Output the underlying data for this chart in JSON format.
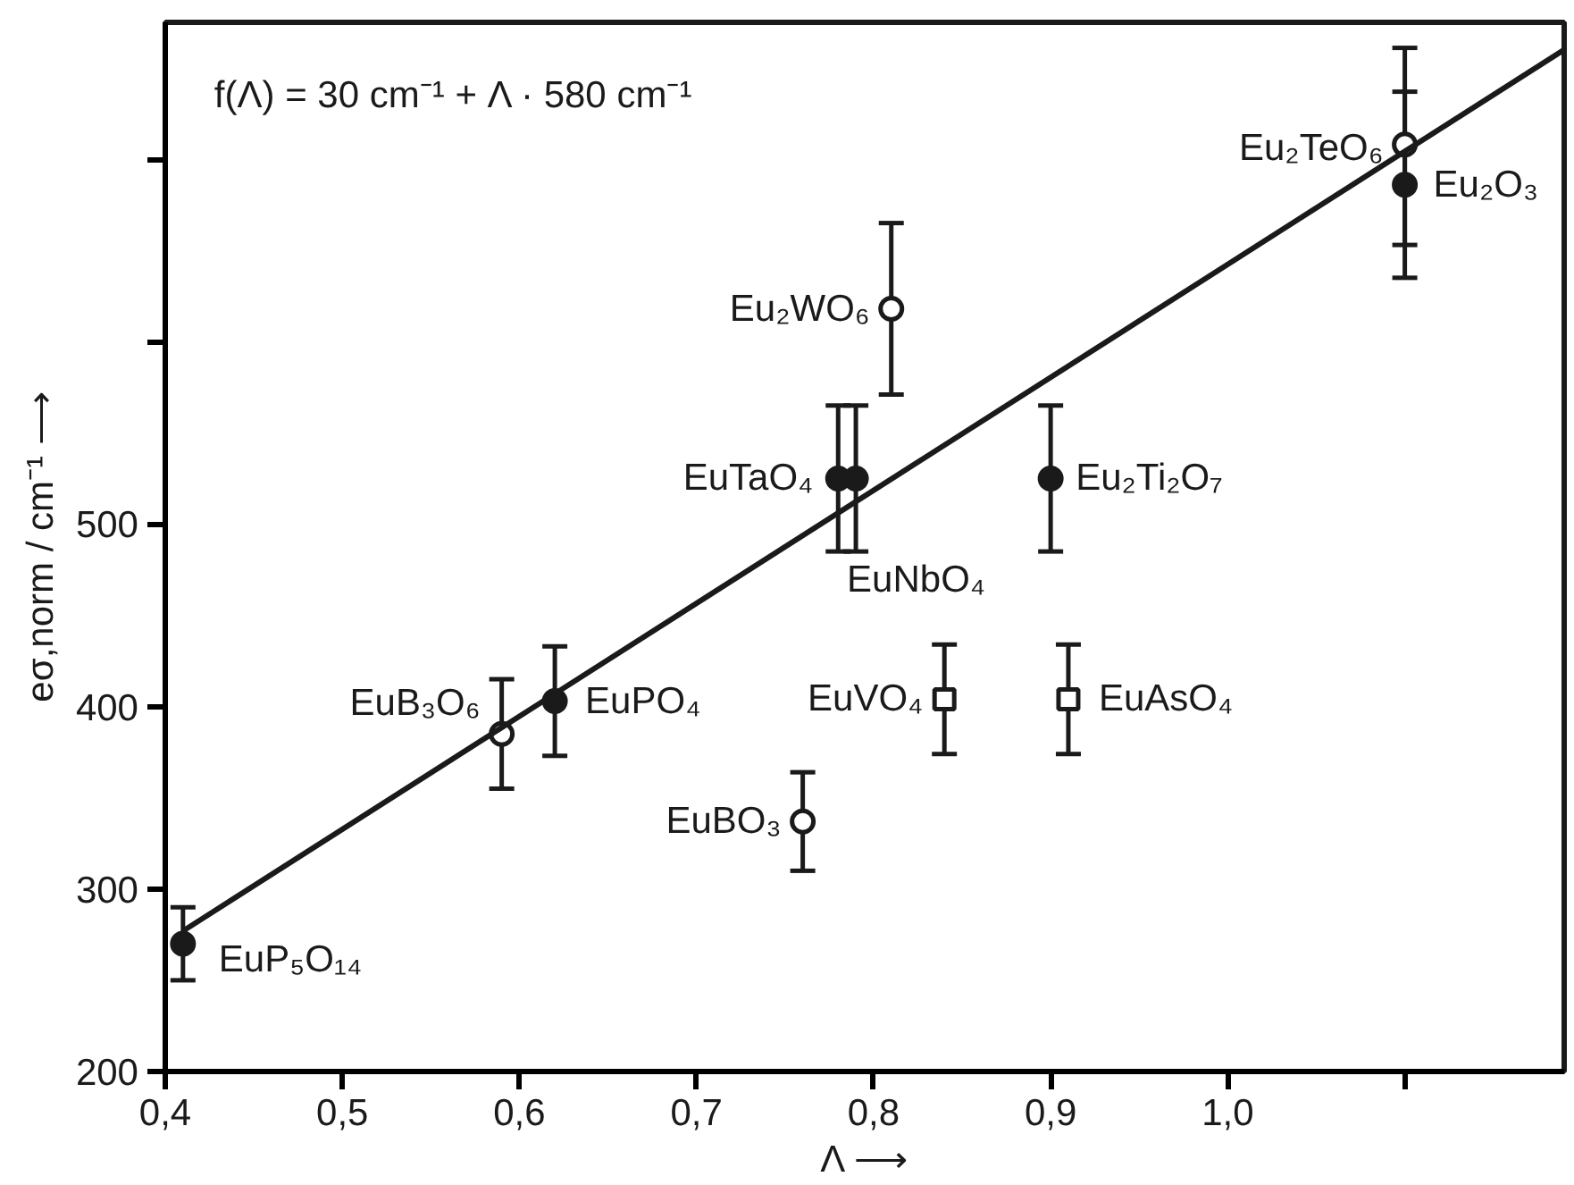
{
  "chart_data": {
    "type": "scatter",
    "xlabel": "Λ ⟶",
    "ylabel": "eσ,norm / cm⁻¹ ⟶",
    "xlim": [
      0.4,
      1.19
    ],
    "ylim": [
      200,
      775
    ],
    "xticks": [
      {
        "value": 0.4,
        "label": "0,4"
      },
      {
        "value": 0.5,
        "label": "0,5"
      },
      {
        "value": 0.6,
        "label": "0,6"
      },
      {
        "value": 0.7,
        "label": "0,7"
      },
      {
        "value": 0.8,
        "label": "0,8"
      },
      {
        "value": 0.9,
        "label": "0,9"
      },
      {
        "value": 1.0,
        "label": "1,0"
      },
      {
        "value": 1.1,
        "label": null
      }
    ],
    "yticks": [
      200,
      300,
      400,
      500,
      {
        "value": 600,
        "label": null
      },
      {
        "value": 700,
        "label": null
      }
    ],
    "grid": false,
    "series": [
      {
        "marker": "circle",
        "color": "#1a1a1a",
        "x": [
          0.41,
          0.62,
          0.78,
          0.79,
          0.9,
          1.1
        ],
        "values": [
          270,
          403,
          525,
          525,
          525,
          686
        ],
        "errors": [
          20,
          30,
          40,
          40,
          40,
          [
            653,
            737
          ]
        ]
      },
      {
        "marker": "circle",
        "color": "#ffffff",
        "x": [
          0.59,
          0.76,
          0.81,
          1.1
        ],
        "values": [
          385,
          337,
          618,
          708
        ],
        "errors": [
          30,
          27,
          [
            571,
            665
          ],
          [
            635,
            761
          ]
        ]
      },
      {
        "marker": "square",
        "color": "#ffffff",
        "x": [
          0.84,
          0.91
        ],
        "values": [
          404,
          404
        ],
        "errors": [
          30,
          30
        ]
      },
      {
        "type": "line",
        "color": "#1a1a1a",
        "line_style": "solid",
        "x": [
          0.41,
          1.19
        ],
        "values": [
          277,
          760
        ]
      }
    ],
    "annotations": [
      "f(Λ) = 30 cm⁻¹ + Λ · 580 cm⁻¹",
      {
        "text": "EuP₅O₁₄",
        "x": 0.41,
        "y": 270
      },
      {
        "text": "EuB₃O₆",
        "x": 0.59,
        "y": 385
      },
      {
        "text": "EuPO₄",
        "x": 0.62,
        "y": 403
      },
      {
        "text": "EuBO₃",
        "x": 0.76,
        "y": 337
      },
      {
        "text": "EuVO₄",
        "x": 0.84,
        "y": 404
      },
      {
        "text": "EuAsO₄",
        "x": 0.91,
        "y": 404
      },
      {
        "text": "EuTaO₄",
        "x": 0.78,
        "y": 525
      },
      {
        "text": "EuNbO₄",
        "x": 0.79,
        "y": 525
      },
      {
        "text": "Eu₂Ti₂O₇",
        "x": 0.9,
        "y": 525
      },
      {
        "text": "Eu₂WO₆",
        "x": 0.81,
        "y": 618
      },
      {
        "text": "Eu₂TeO₆",
        "x": 1.1,
        "y": 708
      },
      {
        "text": "Eu₂O₃",
        "x": 1.1,
        "y": 686
      }
    ]
  }
}
